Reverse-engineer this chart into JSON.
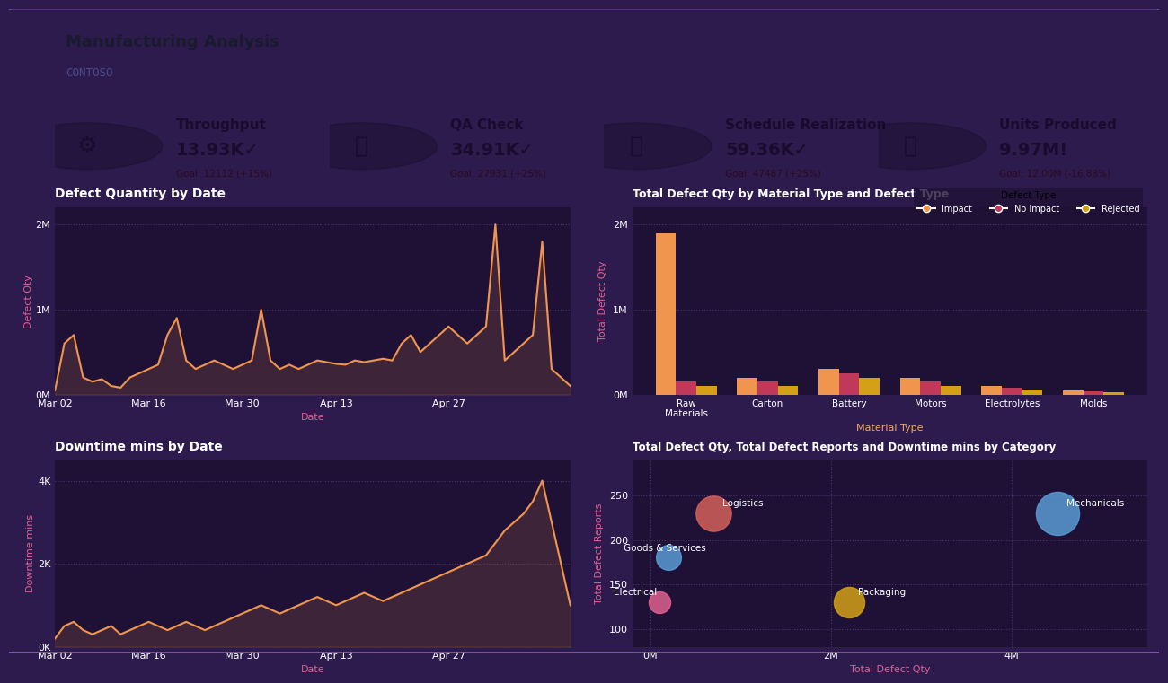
{
  "title": "Manufacturing Analysis",
  "subtitle": "CONTOSO",
  "bg_color": "#2d1b4e",
  "panel_bg": "#1e1135",
  "header_bg": "#ffffff",
  "kpi_cards": [
    {
      "label": "Throughput",
      "value": "13.93K✓",
      "goal": "Goal: 12112 (+15%)",
      "bg": "#c0395a",
      "icon": "⚙"
    },
    {
      "label": "QA Check",
      "value": "34.91K✓",
      "goal": "Goal: 27931 (+25%)",
      "bg": "#d4605a",
      "icon": "📋"
    },
    {
      "label": "Schedule Realization",
      "value": "59.36K✓",
      "goal": "Goal: 47487 (+25%)",
      "bg": "#e8875a",
      "icon": "📅"
    },
    {
      "label": "Units Produced",
      "value": "9.97M!",
      "goal": "Goal: 12.00M (-16.88%)",
      "bg": "#f0a870",
      "icon": "📦"
    }
  ],
  "defect_qty_dates": [
    0,
    1,
    2,
    3,
    4,
    5,
    6,
    7,
    8,
    9,
    10,
    11,
    12,
    13,
    14,
    15,
    16,
    17,
    18,
    19,
    20,
    21,
    22,
    23,
    24,
    25,
    26,
    27,
    28,
    29,
    30,
    31,
    32,
    33,
    34,
    35,
    36,
    37,
    38,
    39,
    40,
    41,
    42,
    43,
    44,
    45,
    46,
    47,
    48,
    49,
    50,
    51,
    52,
    53,
    54,
    55
  ],
  "defect_qty_values": [
    50000,
    600000,
    700000,
    200000,
    150000,
    180000,
    100000,
    80000,
    200000,
    250000,
    300000,
    350000,
    700000,
    900000,
    400000,
    300000,
    350000,
    400000,
    350000,
    300000,
    350000,
    400000,
    1000000,
    400000,
    300000,
    350000,
    300000,
    350000,
    400000,
    380000,
    360000,
    350000,
    400000,
    380000,
    400000,
    420000,
    400000,
    600000,
    700000,
    500000,
    600000,
    700000,
    800000,
    700000,
    600000,
    700000,
    800000,
    2000000,
    400000,
    500000,
    600000,
    700000,
    1800000,
    300000,
    200000,
    100000
  ],
  "defect_date_labels": [
    "Mar 02",
    "Mar 16",
    "Mar 30",
    "Apr 13",
    "Apr 27"
  ],
  "defect_date_positions": [
    0,
    10,
    20,
    30,
    42
  ],
  "downtime_dates": [
    0,
    1,
    2,
    3,
    4,
    5,
    6,
    7,
    8,
    9,
    10,
    11,
    12,
    13,
    14,
    15,
    16,
    17,
    18,
    19,
    20,
    21,
    22,
    23,
    24,
    25,
    26,
    27,
    28,
    29,
    30,
    31,
    32,
    33,
    34,
    35,
    36,
    37,
    38,
    39,
    40,
    41,
    42,
    43,
    44,
    45,
    46,
    47,
    48,
    49,
    50,
    51,
    52,
    53,
    54,
    55
  ],
  "downtime_values": [
    200,
    500,
    600,
    400,
    300,
    400,
    500,
    300,
    400,
    500,
    600,
    500,
    400,
    500,
    600,
    500,
    400,
    500,
    600,
    700,
    800,
    900,
    1000,
    900,
    800,
    900,
    1000,
    1100,
    1200,
    1100,
    1000,
    1100,
    1200,
    1300,
    1200,
    1100,
    1200,
    1300,
    1400,
    1500,
    1600,
    1700,
    1800,
    1900,
    2000,
    2100,
    2200,
    2500,
    2800,
    3000,
    3200,
    3500,
    4000,
    3000,
    2000,
    1000
  ],
  "downtime_date_labels": [
    "Mar 02",
    "Mar 16",
    "Mar 30",
    "Apr 13",
    "Apr 27"
  ],
  "downtime_date_positions": [
    0,
    10,
    20,
    30,
    42
  ],
  "bar_materials": [
    "Raw\nMaterials",
    "Carton",
    "Battery",
    "Motors",
    "Electrolytes",
    "Molds"
  ],
  "bar_impact": [
    1900000,
    200000,
    300000,
    200000,
    100000,
    50000
  ],
  "bar_no_impact": [
    150000,
    150000,
    250000,
    150000,
    80000,
    40000
  ],
  "bar_rejected": [
    100000,
    100000,
    200000,
    100000,
    60000,
    30000
  ],
  "scatter_categories": [
    "Logistics",
    "Goods & Services",
    "Packaging",
    "Electrical",
    "Mechanicals"
  ],
  "scatter_x": [
    700000,
    200000,
    2200000,
    100000,
    4500000
  ],
  "scatter_y": [
    230,
    180,
    130,
    130,
    230
  ],
  "scatter_sizes": [
    800,
    400,
    600,
    300,
    1200
  ],
  "scatter_colors": [
    "#d4605a",
    "#5b9bd5",
    "#d4a017",
    "#e06090",
    "#5b9bd5"
  ],
  "line_color": "#f0954e",
  "chart_bg": "#1e1135",
  "chart_text": "#ffffff",
  "grid_color": "#4a3570",
  "axis_label_color": "#e06090"
}
